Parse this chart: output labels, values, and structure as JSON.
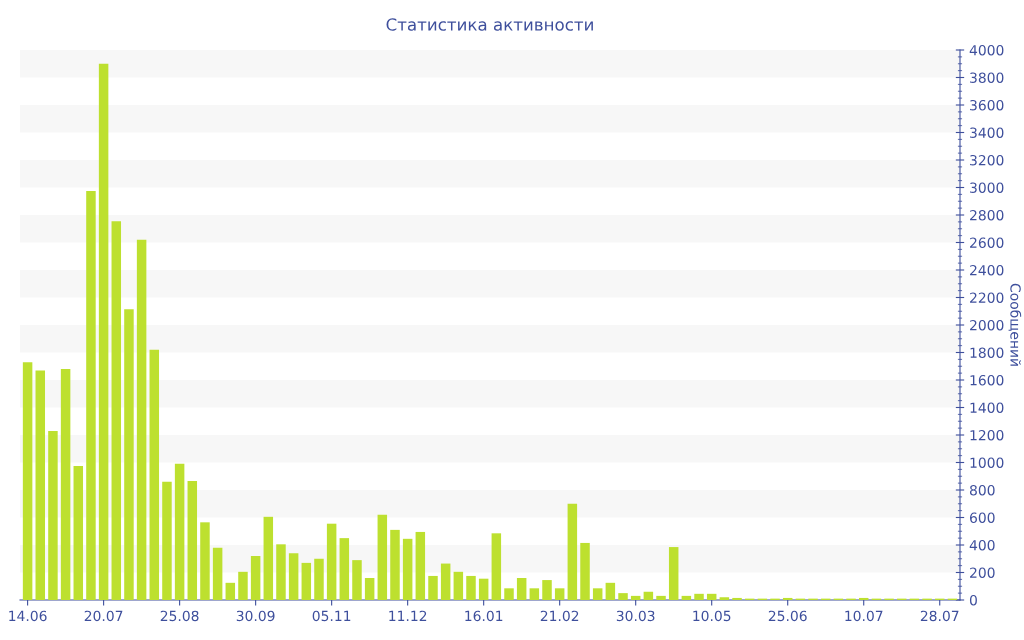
{
  "chart_data": {
    "type": "bar",
    "title": "Статистика активности",
    "ylabel": "Сообщений",
    "categories": [
      "14.06",
      null,
      null,
      null,
      null,
      null,
      "20.07",
      null,
      null,
      null,
      null,
      null,
      "25.08",
      null,
      null,
      null,
      null,
      null,
      "30.09",
      null,
      null,
      null,
      null,
      null,
      "05.11",
      null,
      null,
      null,
      null,
      null,
      "11.12",
      null,
      null,
      null,
      null,
      null,
      "16.01",
      null,
      null,
      null,
      null,
      null,
      "21.02",
      null,
      null,
      null,
      null,
      null,
      "30.03",
      null,
      null,
      null,
      null,
      null,
      "10.05",
      null,
      null,
      null,
      null,
      null,
      "25.06",
      null,
      null,
      null,
      null,
      null,
      "10.07",
      null,
      null,
      null,
      null,
      null,
      "28.07",
      null
    ],
    "values": [
      1730,
      1670,
      1230,
      1680,
      975,
      2975,
      3900,
      2755,
      2115,
      2620,
      1820,
      860,
      990,
      865,
      565,
      380,
      125,
      205,
      320,
      605,
      405,
      340,
      270,
      300,
      555,
      450,
      290,
      160,
      620,
      510,
      445,
      495,
      175,
      265,
      205,
      175,
      155,
      485,
      85,
      160,
      85,
      145,
      85,
      700,
      415,
      85,
      125,
      50,
      30,
      60,
      30,
      385,
      30,
      45,
      45,
      20,
      15,
      10,
      10,
      10,
      15,
      10,
      10,
      10,
      10,
      10,
      15,
      10,
      10,
      10,
      10,
      10,
      10,
      10
    ],
    "color": "#bde02f",
    "ylim": [
      0,
      4000
    ],
    "yticks": [
      0,
      200,
      400,
      600,
      800,
      1000,
      1200,
      1400,
      1600,
      1800,
      2000,
      2200,
      2400,
      2600,
      2800,
      3000,
      3200,
      3400,
      3600,
      3800,
      4000
    ],
    "bands": [
      {
        "axis": "y",
        "from": 200,
        "to": 400,
        "color": "#f7f7f7"
      },
      {
        "axis": "y",
        "from": 600,
        "to": 800,
        "color": "#f7f7f7"
      },
      {
        "axis": "y",
        "from": 1000,
        "to": 1200,
        "color": "#f7f7f7"
      },
      {
        "axis": "y",
        "from": 1400,
        "to": 1600,
        "color": "#f7f7f7"
      },
      {
        "axis": "y",
        "from": 1800,
        "to": 2000,
        "color": "#f7f7f7"
      },
      {
        "axis": "y",
        "from": 2200,
        "to": 2400,
        "color": "#f7f7f7"
      },
      {
        "axis": "y",
        "from": 2600,
        "to": 2800,
        "color": "#f7f7f7"
      },
      {
        "axis": "y",
        "from": 3000,
        "to": 3200,
        "color": "#f7f7f7"
      },
      {
        "axis": "y",
        "from": 3400,
        "to": 3600,
        "color": "#f7f7f7"
      },
      {
        "axis": "y",
        "from": 3800,
        "to": 4000,
        "color": "#f7f7f7"
      }
    ],
    "grid": false,
    "legend": false
  }
}
